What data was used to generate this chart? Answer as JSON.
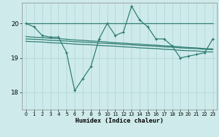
{
  "xlabel": "Humidex (Indice chaleur)",
  "background_color": "#ceeaea",
  "grid_color": "#aad4d4",
  "line_color": "#2a7a70",
  "xlim": [
    -0.5,
    23.5
  ],
  "ylim": [
    17.5,
    20.6
  ],
  "yticks": [
    18,
    19,
    20
  ],
  "xticks": [
    0,
    1,
    2,
    3,
    4,
    5,
    6,
    7,
    8,
    9,
    10,
    11,
    12,
    13,
    14,
    15,
    16,
    17,
    18,
    19,
    20,
    21,
    22,
    23
  ],
  "main_series": [
    20.0,
    19.9,
    19.65,
    19.6,
    19.6,
    19.15,
    18.05,
    18.4,
    18.75,
    19.55,
    20.0,
    19.65,
    19.75,
    20.5,
    20.1,
    19.9,
    19.55,
    19.55,
    19.35,
    19.0,
    19.05,
    19.1,
    19.15,
    19.55
  ],
  "smooth_line1": [
    20.0,
    20.0,
    20.0,
    20.0,
    20.0,
    20.0,
    20.0,
    20.0,
    20.0,
    20.0,
    20.0,
    20.0,
    20.0,
    20.0,
    20.0,
    20.0,
    20.0,
    20.0,
    20.0,
    20.0,
    20.0,
    20.0,
    20.0,
    20.0
  ],
  "smooth_line2": [
    19.62,
    19.6,
    19.59,
    19.57,
    19.56,
    19.54,
    19.52,
    19.51,
    19.49,
    19.48,
    19.46,
    19.44,
    19.43,
    19.41,
    19.4,
    19.38,
    19.37,
    19.35,
    19.34,
    19.32,
    19.3,
    19.29,
    19.27,
    19.26
  ],
  "smooth_line3": [
    19.55,
    19.54,
    19.53,
    19.51,
    19.5,
    19.49,
    19.47,
    19.46,
    19.45,
    19.43,
    19.42,
    19.41,
    19.39,
    19.38,
    19.36,
    19.35,
    19.34,
    19.32,
    19.31,
    19.29,
    19.28,
    19.27,
    19.25,
    19.24
  ],
  "smooth_line4": [
    19.48,
    19.47,
    19.46,
    19.44,
    19.43,
    19.42,
    19.4,
    19.39,
    19.38,
    19.36,
    19.35,
    19.34,
    19.32,
    19.31,
    19.29,
    19.28,
    19.27,
    19.25,
    19.24,
    19.22,
    19.21,
    19.2,
    19.18,
    19.17
  ]
}
